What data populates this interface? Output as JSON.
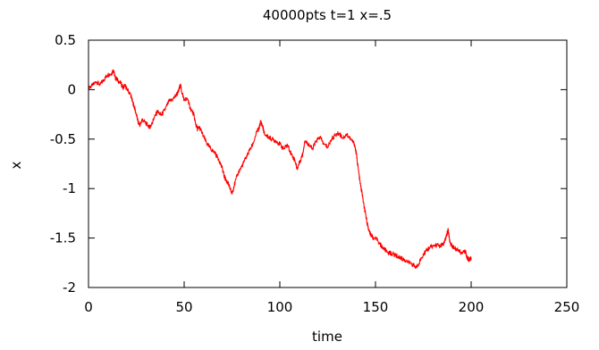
{
  "chart_data": {
    "type": "line",
    "title": "40000pts t=1 x=.5",
    "xlabel": "time",
    "ylabel": "x",
    "xlim": [
      0,
      250
    ],
    "ylim": [
      -2,
      0.5
    ],
    "x_ticks": [
      0,
      50,
      100,
      150,
      200,
      250
    ],
    "y_ticks": [
      0.5,
      0,
      -0.5,
      -1,
      -1.5,
      -2
    ],
    "x_tick_labels": [
      "0",
      "50",
      "100",
      "150",
      "200",
      "250"
    ],
    "y_tick_labels": [
      "0.5",
      "0",
      "-0.5",
      "-1",
      "-1.5",
      "-2"
    ],
    "grid": false,
    "legend": "none",
    "series": [
      {
        "color": "#ff0000",
        "points": [
          [
            0,
            0.02
          ],
          [
            2,
            0.04
          ],
          [
            4,
            0.08
          ],
          [
            6,
            0.05
          ],
          [
            8,
            0.1
          ],
          [
            10,
            0.15
          ],
          [
            12,
            0.16
          ],
          [
            13,
            0.2
          ],
          [
            14,
            0.12
          ],
          [
            15,
            0.1
          ],
          [
            17,
            0.06
          ],
          [
            18,
            0.02
          ],
          [
            19,
            0.04
          ],
          [
            20,
            0.01
          ],
          [
            22,
            -0.05
          ],
          [
            23,
            -0.12
          ],
          [
            24,
            -0.18
          ],
          [
            25,
            -0.25
          ],
          [
            26,
            -0.33
          ],
          [
            27,
            -0.36
          ],
          [
            28,
            -0.3
          ],
          [
            30,
            -0.34
          ],
          [
            32,
            -0.38
          ],
          [
            33,
            -0.35
          ],
          [
            34,
            -0.3
          ],
          [
            36,
            -0.22
          ],
          [
            38,
            -0.26
          ],
          [
            40,
            -0.2
          ],
          [
            42,
            -0.12
          ],
          [
            44,
            -0.1
          ],
          [
            46,
            -0.05
          ],
          [
            47,
            -0.02
          ],
          [
            48,
            0.05
          ],
          [
            49,
            -0.04
          ],
          [
            50,
            -0.1
          ],
          [
            52,
            -0.1
          ],
          [
            53,
            -0.18
          ],
          [
            55,
            -0.25
          ],
          [
            56,
            -0.35
          ],
          [
            57,
            -0.4
          ],
          [
            58,
            -0.38
          ],
          [
            60,
            -0.47
          ],
          [
            62,
            -0.55
          ],
          [
            64,
            -0.6
          ],
          [
            66,
            -0.64
          ],
          [
            68,
            -0.7
          ],
          [
            70,
            -0.8
          ],
          [
            71,
            -0.88
          ],
          [
            72,
            -0.92
          ],
          [
            73,
            -0.95
          ],
          [
            74,
            -1.0
          ],
          [
            75,
            -1.05
          ],
          [
            76,
            -0.98
          ],
          [
            78,
            -0.85
          ],
          [
            80,
            -0.78
          ],
          [
            82,
            -0.7
          ],
          [
            84,
            -0.62
          ],
          [
            86,
            -0.55
          ],
          [
            88,
            -0.42
          ],
          [
            89,
            -0.4
          ],
          [
            90,
            -0.32
          ],
          [
            91,
            -0.37
          ],
          [
            92,
            -0.45
          ],
          [
            94,
            -0.48
          ],
          [
            96,
            -0.5
          ],
          [
            98,
            -0.52
          ],
          [
            100,
            -0.55
          ],
          [
            102,
            -0.6
          ],
          [
            104,
            -0.56
          ],
          [
            106,
            -0.65
          ],
          [
            108,
            -0.72
          ],
          [
            109,
            -0.8
          ],
          [
            110,
            -0.75
          ],
          [
            112,
            -0.65
          ],
          [
            113,
            -0.52
          ],
          [
            115,
            -0.55
          ],
          [
            117,
            -0.6
          ],
          [
            119,
            -0.52
          ],
          [
            121,
            -0.48
          ],
          [
            123,
            -0.55
          ],
          [
            125,
            -0.58
          ],
          [
            127,
            -0.5
          ],
          [
            129,
            -0.46
          ],
          [
            131,
            -0.44
          ],
          [
            133,
            -0.49
          ],
          [
            135,
            -0.45
          ],
          [
            137,
            -0.5
          ],
          [
            139,
            -0.55
          ],
          [
            140,
            -0.65
          ],
          [
            141,
            -0.8
          ],
          [
            142,
            -0.95
          ],
          [
            143,
            -1.05
          ],
          [
            144,
            -1.18
          ],
          [
            145,
            -1.28
          ],
          [
            146,
            -1.38
          ],
          [
            147,
            -1.45
          ],
          [
            148,
            -1.48
          ],
          [
            149,
            -1.5
          ],
          [
            151,
            -1.52
          ],
          [
            153,
            -1.58
          ],
          [
            155,
            -1.62
          ],
          [
            157,
            -1.65
          ],
          [
            159,
            -1.66
          ],
          [
            161,
            -1.68
          ],
          [
            163,
            -1.7
          ],
          [
            165,
            -1.72
          ],
          [
            167,
            -1.74
          ],
          [
            169,
            -1.76
          ],
          [
            171,
            -1.8
          ],
          [
            172,
            -1.78
          ],
          [
            174,
            -1.7
          ],
          [
            176,
            -1.64
          ],
          [
            178,
            -1.6
          ],
          [
            180,
            -1.58
          ],
          [
            182,
            -1.57
          ],
          [
            184,
            -1.58
          ],
          [
            186,
            -1.55
          ],
          [
            187,
            -1.48
          ],
          [
            188,
            -1.42
          ],
          [
            189,
            -1.55
          ],
          [
            191,
            -1.6
          ],
          [
            193,
            -1.62
          ],
          [
            195,
            -1.65
          ],
          [
            197,
            -1.64
          ],
          [
            198,
            -1.7
          ],
          [
            199,
            -1.72
          ],
          [
            200,
            -1.7
          ]
        ]
      }
    ]
  }
}
